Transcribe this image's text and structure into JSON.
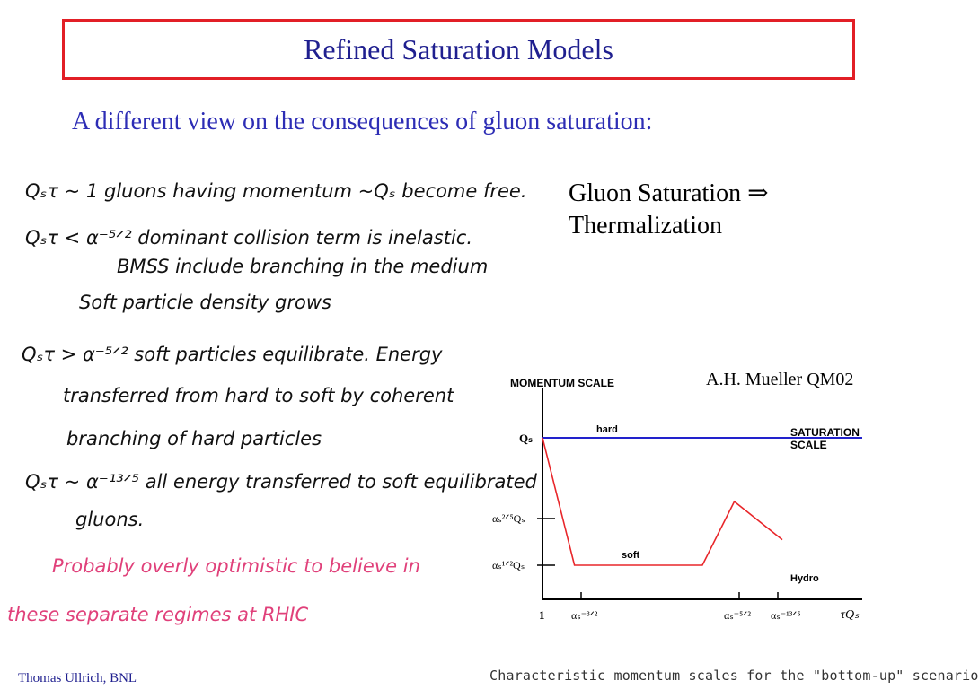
{
  "slide": {
    "title": "Refined Saturation Models",
    "subtitle": "A different view on the consequences of gluon saturation:",
    "claim_line1": "Gluon Saturation ⇒",
    "claim_line2": "Thermalization",
    "credit": "A.H. Mueller QM02",
    "footer": "Thomas Ullrich, BNL",
    "caption": "Characteristic momentum scales for the \"bottom-up\" scenario"
  },
  "notes": {
    "l1": "Qₛτ ~ 1   gluons having momentum ~Qₛ become free.",
    "l2": "Qₛτ < α⁻⁵ᐟ²  dominant collision term is inelastic.",
    "l3": "BMSS include branching in the medium",
    "l4": "Soft particle density grows",
    "l5": "Qₛτ > α⁻⁵ᐟ²    soft particles equilibrate. Energy",
    "l6": "transferred from hard to soft by coherent",
    "l7": "branching of hard particles",
    "l8": "Qₛτ ~ α⁻¹³ᐟ⁵   all energy transferred to soft equilibrated",
    "l9": "gluons.",
    "p1": "Probably overly optimistic to believe in",
    "p2": "these separate regimes at RHIC"
  },
  "colors": {
    "title_border": "#e21f26",
    "title_text": "#1f1f8f",
    "subtitle_text": "#2d2db5",
    "hard_line": "#2222cc",
    "soft_line": "#e8262a",
    "pink_notes": "#e0407a"
  },
  "chart_data": {
    "type": "line",
    "ylabel": "MOMENTUM   SCALE",
    "xlabel": "τQₛ",
    "x_ticks": [
      "1",
      "αₛ⁻³ᐟ²",
      "αₛ⁻⁵ᐟ²",
      "αₛ⁻¹³ᐟ⁵"
    ],
    "y_ticks": [
      "Qₛ",
      "αₛ²ᐟ⁵Qₛ",
      "αₛ¹ᐟ²Qₛ"
    ],
    "series": [
      {
        "name": "hard",
        "x": [
          0,
          10
        ],
        "y": [
          1.0,
          1.0
        ]
      },
      {
        "name": "soft",
        "x": [
          0,
          1,
          5,
          6,
          7.5
        ],
        "y": [
          1.0,
          0.0,
          0.0,
          0.5,
          0.2
        ]
      }
    ],
    "annotations": [
      "SATURATION",
      "SCALE",
      "Hydro"
    ]
  }
}
